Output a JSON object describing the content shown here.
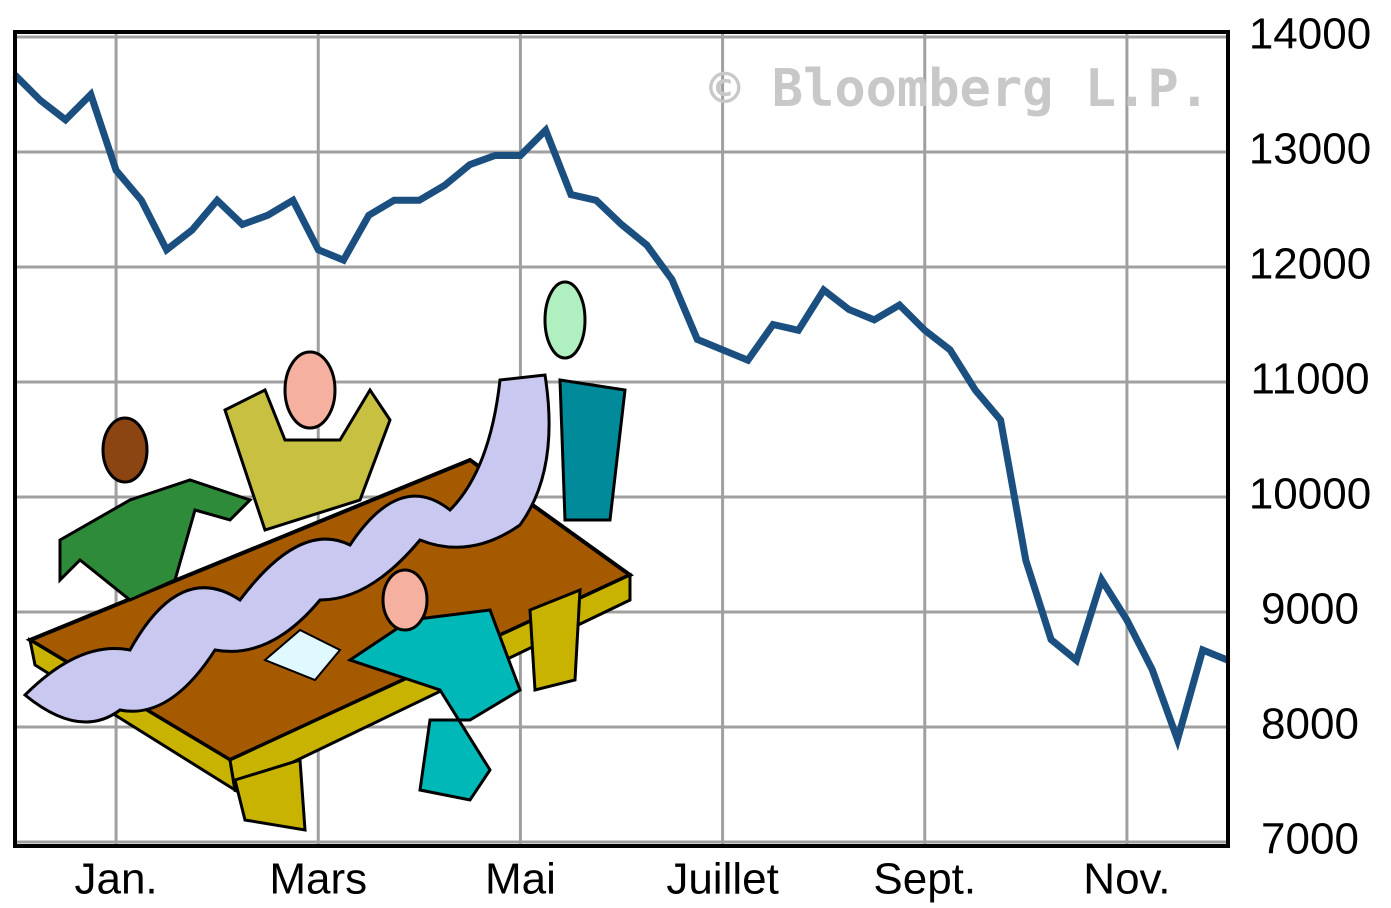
{
  "chart_data": {
    "type": "line",
    "watermark": "© Bloomberg L.P.",
    "categories": [
      null,
      null,
      null,
      null,
      "Jan.",
      null,
      null,
      null,
      null,
      null,
      null,
      null,
      "Mars",
      null,
      null,
      null,
      null,
      null,
      null,
      null,
      "Mai",
      null,
      null,
      null,
      null,
      null,
      null,
      null,
      "Juillet",
      null,
      null,
      null,
      null,
      null,
      null,
      null,
      "Sept.",
      null,
      null,
      null,
      null,
      null,
      null,
      null,
      "Nov.",
      null,
      null,
      null,
      null
    ],
    "series": [
      {
        "color": "#1a4f80",
        "values": [
          13670,
          13450,
          13280,
          13500,
          12840,
          12580,
          12150,
          12320,
          12580,
          12370,
          12450,
          12580,
          12150,
          12060,
          12450,
          12580,
          12580,
          12710,
          12890,
          12970,
          12970,
          13190,
          12630,
          12580,
          12370,
          12190,
          11890,
          11370,
          11280,
          11190,
          11500,
          11450,
          11800,
          11630,
          11540,
          11670,
          11450,
          11280,
          10930,
          10670,
          9450,
          8760,
          8580,
          9280,
          8930,
          8500,
          7890,
          8670,
          8580
        ]
      }
    ],
    "ylim": [
      7000,
      14000
    ],
    "yticks": [
      7000,
      8000,
      9000,
      10000,
      11000,
      12000,
      13000,
      14000
    ],
    "grid": true
  }
}
